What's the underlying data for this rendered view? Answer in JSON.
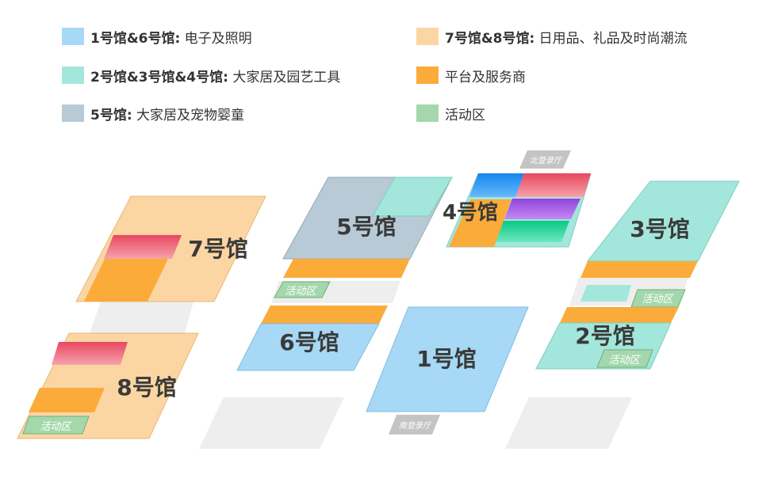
{
  "colors": {
    "electronics": "#a7d8f5",
    "home_garden": "#a3e6dc",
    "pet_baby": "#b8cad6",
    "daily_gifts": "#fbd6a3",
    "service": "#fbab3a",
    "activity": "#a4d8ac",
    "plaza": "#eeeeee",
    "pink": "#ec5a72",
    "blue": "#1a8cf0",
    "purple": "#9b52e0",
    "green": "#10cf8e",
    "entrance": "#c4c4c4"
  },
  "legend": [
    {
      "num": "1号馆&6号馆:",
      "desc": " 电子及照明",
      "color": "#a7d8f5"
    },
    {
      "num": "7号馆&8号馆:",
      "desc": " 日用品、礼品及时尚潮流",
      "color": "#fbd6a3"
    },
    {
      "num": "2号馆&3号馆&4号馆:",
      "desc": " 大家居及园艺工具",
      "color": "#a3e6dc"
    },
    {
      "num": "",
      "desc": "平台及服务商",
      "color": "#fbab3a"
    },
    {
      "num": "5号馆:",
      "desc": " 大家居及宠物婴童",
      "color": "#b8cad6"
    },
    {
      "num": "",
      "desc": "活动区",
      "color": "#a4d8ac"
    }
  ],
  "halls": {
    "h1": "1号馆",
    "h2": "2号馆",
    "h3": "3号馆",
    "h4": "4号馆",
    "h5": "5号馆",
    "h6": "6号馆",
    "h7": "7号馆",
    "h8": "8号馆"
  },
  "activity_label": "活动区",
  "north_entrance": "北登录厅",
  "south_entrance": "南登录厅"
}
